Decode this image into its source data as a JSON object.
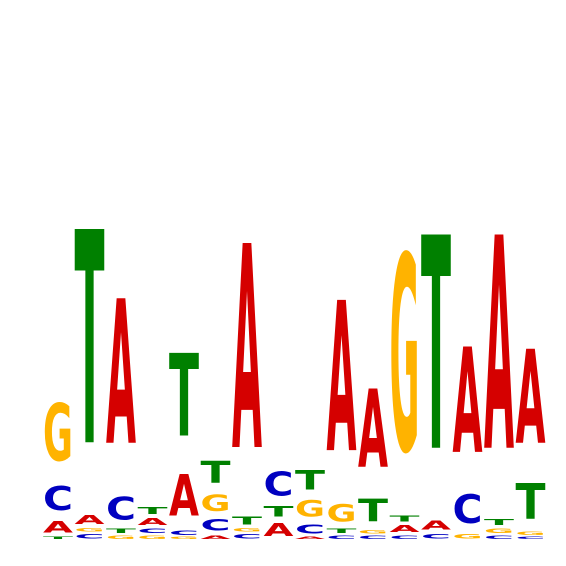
{
  "chart_data": {
    "type": "sequence-logo",
    "title": "",
    "xlabel": "",
    "ylabel": "",
    "axes_shown": false,
    "grid": false,
    "colors": {
      "A": "#d50000",
      "C": "#0000c0",
      "G": "#ffb300",
      "T": "#008000"
    },
    "scale_note": "stack heights in bits",
    "ylim": [
      0,
      2
    ],
    "positions": [
      {
        "index": 1,
        "letters": [
          [
            "T",
            0.02
          ],
          [
            "A",
            0.1
          ],
          [
            "C",
            0.21
          ],
          [
            "G",
            0.5
          ]
        ]
      },
      {
        "index": 2,
        "letters": [
          [
            "C",
            0.04
          ],
          [
            "G",
            0.03
          ],
          [
            "A",
            0.08
          ],
          [
            "T",
            1.86
          ]
        ]
      },
      {
        "index": 3,
        "letters": [
          [
            "G",
            0.03
          ],
          [
            "T",
            0.04
          ],
          [
            "C",
            0.2
          ],
          [
            "A",
            1.26
          ]
        ]
      },
      {
        "index": 4,
        "letters": [
          [
            "G",
            0.03
          ],
          [
            "C",
            0.04
          ],
          [
            "A",
            0.06
          ],
          [
            "T",
            0.06
          ]
        ]
      },
      {
        "index": 5,
        "letters": [
          [
            "G",
            0.02
          ],
          [
            "C",
            0.04
          ],
          [
            "A",
            0.36
          ],
          [
            "T",
            0.72
          ]
        ]
      },
      {
        "index": 6,
        "letters": [
          [
            "A",
            0.03
          ],
          [
            "C",
            0.1
          ],
          [
            "G",
            0.14
          ],
          [
            "T",
            0.19
          ]
        ]
      },
      {
        "index": 7,
        "letters": [
          [
            "C",
            0.04
          ],
          [
            "G",
            0.03
          ],
          [
            "T",
            0.07
          ],
          [
            "A",
            1.78
          ]
        ]
      },
      {
        "index": 8,
        "letters": [
          [
            "A",
            0.11
          ],
          [
            "T",
            0.09
          ],
          [
            "C",
            0.21
          ]
        ]
      },
      {
        "index": 9,
        "letters": [
          [
            "A",
            0.02
          ],
          [
            "C",
            0.08
          ],
          [
            "G",
            0.14
          ],
          [
            "T",
            0.17
          ]
        ]
      },
      {
        "index": 10,
        "letters": [
          [
            "C",
            0.03
          ],
          [
            "T",
            0.04
          ],
          [
            "G",
            0.15
          ],
          [
            "A",
            1.31
          ]
        ]
      },
      {
        "index": 11,
        "letters": [
          [
            "C",
            0.03
          ],
          [
            "G",
            0.03
          ],
          [
            "T",
            0.2
          ],
          [
            "A",
            0.68
          ]
        ]
      },
      {
        "index": 12,
        "letters": [
          [
            "C",
            0.03
          ],
          [
            "A",
            0.06
          ],
          [
            "T",
            0.05
          ],
          [
            "G",
            1.71
          ]
        ]
      },
      {
        "index": 13,
        "letters": [
          [
            "C",
            0.04
          ],
          [
            "A",
            0.08
          ],
          [
            "T",
            1.86
          ]
        ]
      },
      {
        "index": 14,
        "letters": [
          [
            "G",
            0.04
          ],
          [
            "C",
            0.25
          ],
          [
            "A",
            0.92
          ]
        ]
      },
      {
        "index": 15,
        "letters": [
          [
            "C",
            0.03
          ],
          [
            "G",
            0.04
          ],
          [
            "T",
            0.05
          ],
          [
            "A",
            1.86
          ]
        ]
      },
      {
        "index": 16,
        "letters": [
          [
            "C",
            0.02
          ],
          [
            "G",
            0.03
          ],
          [
            "T",
            0.31
          ],
          [
            "A",
            0.82
          ]
        ]
      }
    ]
  }
}
